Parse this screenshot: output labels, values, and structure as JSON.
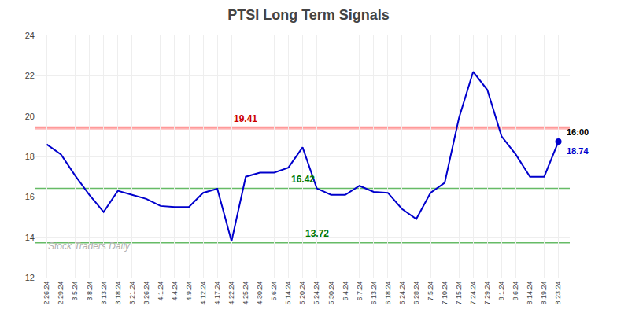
{
  "chart_data": {
    "type": "line",
    "title": "PTSI Long Term Signals",
    "categories": [
      "2.26.24",
      "2.29.24",
      "3.5.24",
      "3.8.24",
      "3.13.24",
      "3.18.24",
      "3.21.24",
      "3.26.24",
      "4.1.24",
      "4.4.24",
      "4.9.24",
      "4.12.24",
      "4.17.24",
      "4.22.24",
      "4.25.24",
      "4.30.24",
      "5.6.24",
      "5.14.24",
      "5.20.24",
      "5.24.24",
      "5.30.24",
      "6.4.24",
      "6.7.24",
      "6.13.24",
      "6.18.24",
      "6.24.24",
      "6.28.24",
      "7.5.24",
      "7.10.24",
      "7.15.24",
      "7.24.24",
      "7.29.24",
      "8.1.24",
      "8.6.24",
      "8.14.24",
      "8.19.24",
      "8.23.24"
    ],
    "values": [
      18.6,
      18.1,
      17.05,
      16.1,
      15.25,
      16.3,
      16.1,
      15.9,
      15.55,
      15.5,
      15.5,
      16.2,
      16.4,
      13.8,
      17.0,
      17.2,
      17.2,
      17.45,
      18.45,
      16.42,
      16.1,
      16.1,
      16.55,
      16.25,
      16.2,
      15.4,
      14.9,
      16.2,
      16.7,
      19.9,
      22.2,
      21.3,
      19.0,
      18.1,
      17.0,
      17.0,
      18.74
    ],
    "color": "#0000cc",
    "ylim": [
      12,
      24
    ],
    "yticks": [
      12,
      14,
      16,
      18,
      20,
      22,
      24
    ],
    "grid": true,
    "hlines": [
      {
        "value": 19.41,
        "color": "#ff9999",
        "band": [
          19.32,
          19.5
        ],
        "band_color": "#ffcccc",
        "label": "19.41",
        "label_color": "#cc0000",
        "label_at": "4.25.24"
      },
      {
        "value": 16.42,
        "color": "#66bb66",
        "label": "16.42",
        "label_color": "#007700",
        "label_at": "5.20.24"
      },
      {
        "value": 13.72,
        "color": "#66bb66",
        "label": "13.72",
        "label_color": "#007700",
        "label_at": "5.24.24"
      }
    ],
    "last_point": {
      "color": "#0000cc",
      "label": "16:00",
      "value_label": "18.74"
    },
    "watermark": {
      "text": "Stock Traders Daily",
      "color": "#b0b0b0"
    }
  }
}
